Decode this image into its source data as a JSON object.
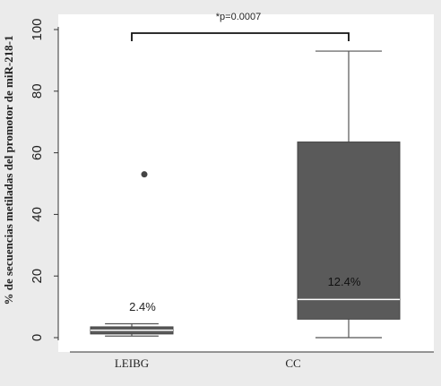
{
  "chart_data": {
    "type": "box",
    "ylabel": "% de secuencias metiladas del promotor de miR-218-1",
    "ylim": [
      0,
      100
    ],
    "yticks": [
      0,
      20,
      40,
      60,
      80,
      100
    ],
    "tick_labels": [
      "0",
      "20",
      "40",
      "60",
      "80",
      "100"
    ],
    "categories": [
      "LEIBG",
      "CC"
    ],
    "boxes": [
      {
        "category": "LEIBG",
        "whisker_low": 0.5,
        "q1": 1.2,
        "median": 2.4,
        "q3": 3.5,
        "whisker_high": 4.5,
        "outliers": [
          53
        ],
        "median_label": "2.4%"
      },
      {
        "category": "CC",
        "whisker_low": 0,
        "q1": 6,
        "median": 12.4,
        "q3": 63.5,
        "whisker_high": 93,
        "outliers": [],
        "median_label": "12.4%"
      }
    ],
    "significance": {
      "label": "*p=0.0007",
      "between": [
        "LEIBG",
        "CC"
      ]
    },
    "colors": {
      "box_fill": "#5a5a5a",
      "median_line": "#ffffff",
      "whisker": "#555555",
      "background": "#ebebeb",
      "plot_bg": "#ffffff"
    }
  }
}
